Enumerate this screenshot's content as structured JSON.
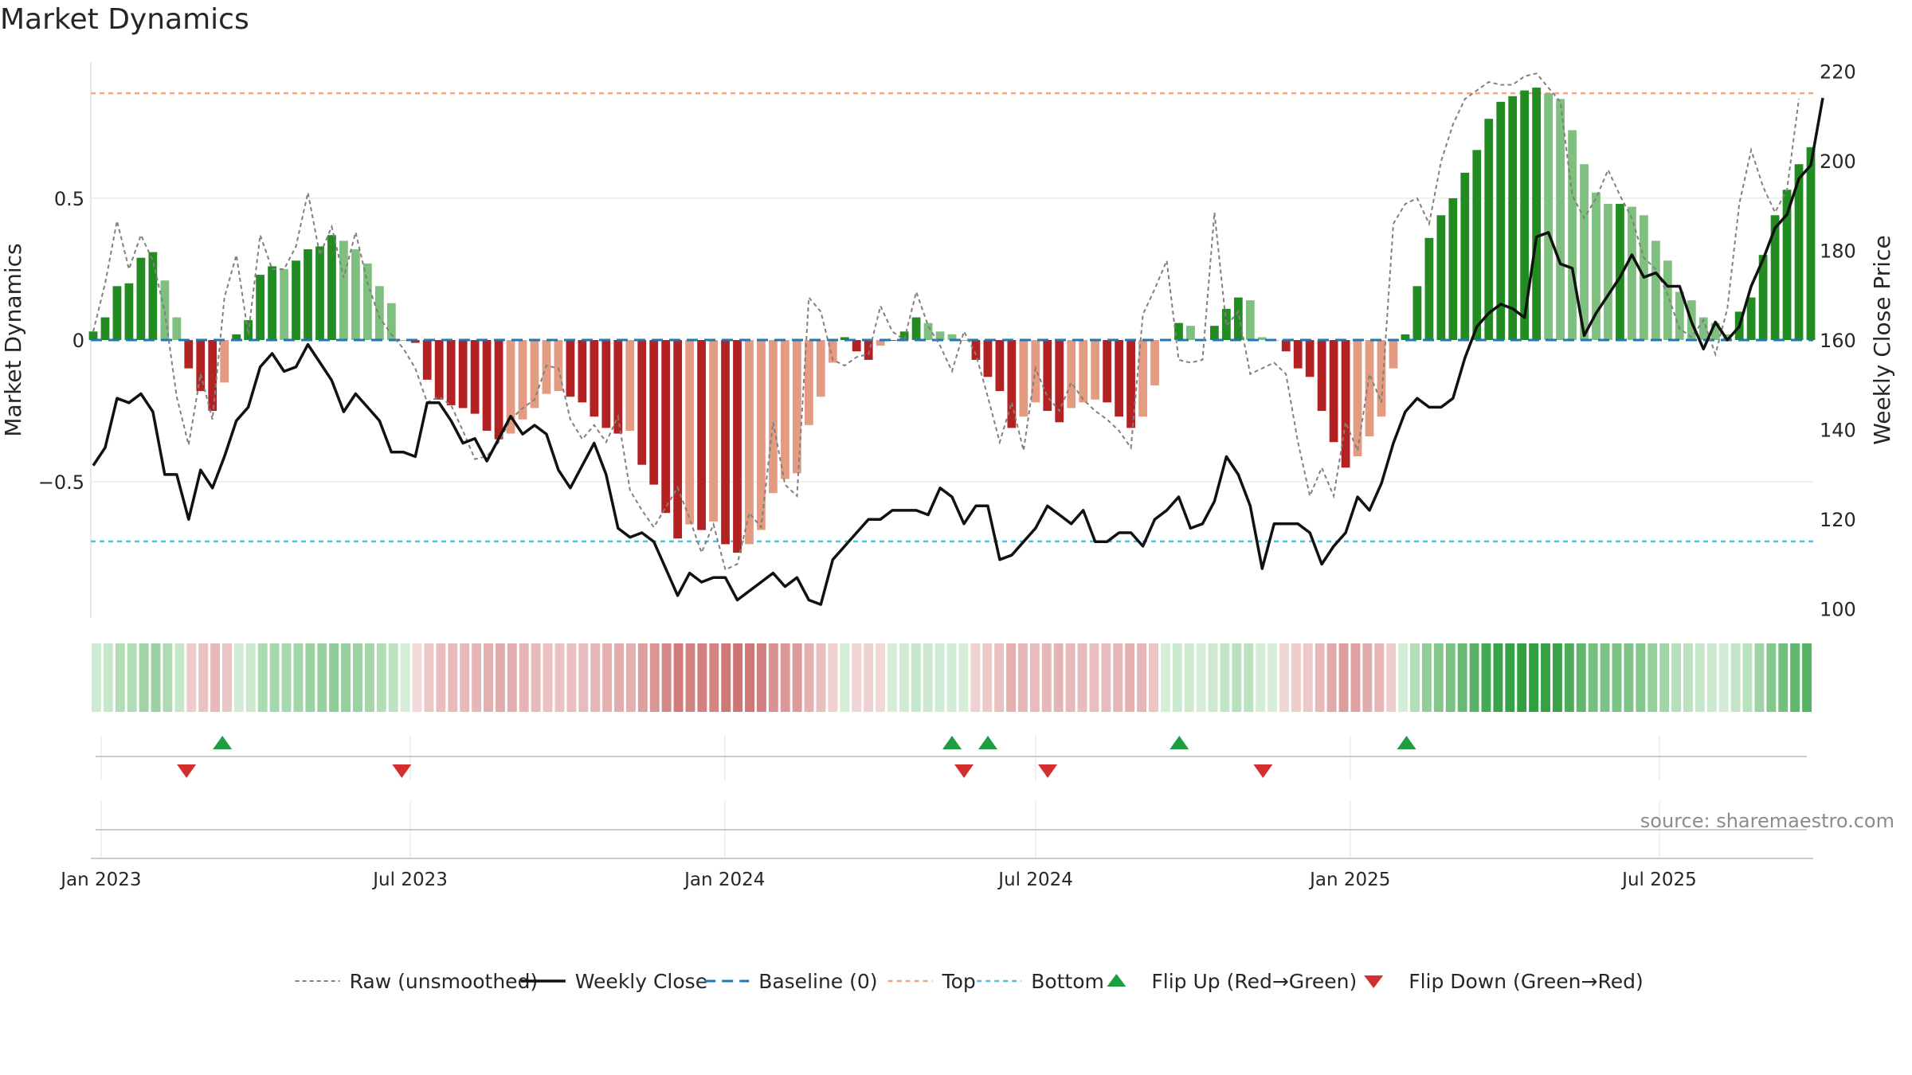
{
  "chart_data": {
    "type": "bar",
    "title": "Market Dynamics",
    "ylabel": "Market Dynamics",
    "y2label": "Weekly Close Price",
    "ylim": [
      -0.98,
      0.98
    ],
    "y2lim": [
      98,
      222
    ],
    "yticks": [
      {
        "v": 0.5,
        "label": "0.5"
      },
      {
        "v": 0,
        "label": "0"
      },
      {
        "v": -0.5,
        "label": "−0.5"
      }
    ],
    "y2ticks": [
      {
        "v": 220,
        "label": "220"
      },
      {
        "v": 200,
        "label": "200"
      },
      {
        "v": 180,
        "label": "180"
      },
      {
        "v": 160,
        "label": "160"
      },
      {
        "v": 140,
        "label": "140"
      },
      {
        "v": 120,
        "label": "120"
      },
      {
        "v": 100,
        "label": "100"
      }
    ],
    "xaxis": {
      "start": "2022-12-26",
      "end": "2025-09-29",
      "ticks": [
        {
          "date": "2023-01-01",
          "label": "Jan 2023"
        },
        {
          "date": "2023-07-01",
          "label": "Jul 2023"
        },
        {
          "date": "2024-01-01",
          "label": "Jan 2024"
        },
        {
          "date": "2024-07-01",
          "label": "Jul 2024"
        },
        {
          "date": "2025-01-01",
          "label": "Jan 2025"
        },
        {
          "date": "2025-07-01",
          "label": "Jul 2025"
        }
      ]
    },
    "top_line": 0.87,
    "bottom_line": -0.71,
    "weekly_close": [
      132,
      136,
      147,
      146,
      148,
      144,
      130,
      130,
      120,
      131,
      127,
      134,
      142,
      145,
      154,
      157,
      153,
      154,
      159,
      155,
      151,
      144,
      148,
      145,
      142,
      135,
      135,
      134,
      146,
      146,
      142,
      137,
      138,
      133,
      138,
      143,
      139,
      141,
      139,
      131,
      127,
      132,
      137,
      130,
      118,
      116,
      117,
      115,
      109,
      103,
      108,
      106,
      107,
      107,
      102,
      104,
      106,
      108,
      105,
      107,
      102,
      101,
      111,
      114,
      117,
      120,
      120,
      122,
      122,
      122,
      121,
      127,
      125,
      119,
      123,
      123,
      111,
      112,
      115,
      118,
      123,
      121,
      119,
      122,
      115,
      115,
      117,
      117,
      114,
      120,
      122,
      125,
      118,
      119,
      124,
      134,
      130,
      123,
      109,
      119,
      119,
      119,
      117,
      110,
      114,
      117,
      125,
      122,
      128,
      137,
      144,
      147,
      145,
      145,
      147,
      156,
      163,
      166,
      168,
      167,
      165,
      183,
      184,
      177,
      176,
      161,
      166,
      170,
      174,
      179,
      174,
      175,
      172,
      172,
      164,
      158,
      164,
      160,
      163,
      172,
      178,
      185,
      188,
      196,
      199,
      214
    ],
    "bars": [
      0.03,
      0.08,
      0.19,
      0.2,
      0.29,
      0.31,
      0.21,
      0.08,
      -0.1,
      -0.18,
      -0.25,
      -0.15,
      0.02,
      0.07,
      0.23,
      0.26,
      0.25,
      0.28,
      0.32,
      0.33,
      0.37,
      0.35,
      0.32,
      0.27,
      0.19,
      0.13,
      0.0,
      -0.01,
      -0.14,
      -0.21,
      -0.23,
      -0.24,
      -0.26,
      -0.32,
      -0.35,
      -0.33,
      -0.28,
      -0.24,
      -0.19,
      -0.18,
      -0.2,
      -0.22,
      -0.27,
      -0.31,
      -0.33,
      -0.32,
      -0.44,
      -0.51,
      -0.61,
      -0.7,
      -0.65,
      -0.67,
      -0.64,
      -0.72,
      -0.75,
      -0.72,
      -0.67,
      -0.54,
      -0.49,
      -0.47,
      -0.3,
      -0.2,
      -0.08,
      0.01,
      -0.04,
      -0.07,
      -0.02,
      0.0,
      0.03,
      0.08,
      0.06,
      0.03,
      0.02,
      0.0,
      -0.07,
      -0.13,
      -0.18,
      -0.31,
      -0.27,
      -0.22,
      -0.25,
      -0.29,
      -0.24,
      -0.22,
      -0.21,
      -0.22,
      -0.27,
      -0.31,
      -0.27,
      -0.16,
      0.0,
      0.06,
      0.05,
      0.0,
      0.05,
      0.11,
      0.15,
      0.14,
      0.01,
      0.0,
      -0.04,
      -0.1,
      -0.13,
      -0.25,
      -0.36,
      -0.45,
      -0.41,
      -0.34,
      -0.27,
      -0.1,
      0.02,
      0.19,
      0.36,
      0.44,
      0.5,
      0.59,
      0.67,
      0.78,
      0.84,
      0.86,
      0.88,
      0.89,
      0.87,
      0.85,
      0.74,
      0.62,
      0.52,
      0.48,
      0.48,
      0.47,
      0.44,
      0.35,
      0.28,
      0.17,
      0.14,
      0.08,
      0.06,
      0.02,
      0.1,
      0.15,
      0.3,
      0.44,
      0.53,
      0.62,
      0.68
    ],
    "raw": [
      0.03,
      0.2,
      0.42,
      0.25,
      0.37,
      0.28,
      0.1,
      -0.2,
      -0.37,
      -0.12,
      -0.28,
      0.15,
      0.3,
      0.02,
      0.37,
      0.25,
      0.25,
      0.33,
      0.52,
      0.3,
      0.4,
      0.22,
      0.38,
      0.2,
      0.08,
      0.02,
      -0.03,
      -0.1,
      -0.22,
      -0.2,
      -0.23,
      -0.32,
      -0.42,
      -0.41,
      -0.36,
      -0.28,
      -0.24,
      -0.21,
      -0.09,
      -0.1,
      -0.28,
      -0.35,
      -0.3,
      -0.36,
      -0.27,
      -0.53,
      -0.6,
      -0.66,
      -0.59,
      -0.52,
      -0.63,
      -0.75,
      -0.65,
      -0.81,
      -0.79,
      -0.61,
      -0.66,
      -0.29,
      -0.51,
      -0.55,
      0.15,
      0.1,
      -0.07,
      -0.09,
      -0.06,
      -0.05,
      0.12,
      0.03,
      0.0,
      0.17,
      0.05,
      -0.02,
      -0.11,
      0.03,
      -0.05,
      -0.2,
      -0.36,
      -0.22,
      -0.39,
      -0.1,
      -0.2,
      -0.25,
      -0.15,
      -0.21,
      -0.25,
      -0.28,
      -0.32,
      -0.38,
      0.09,
      0.18,
      0.28,
      -0.07,
      -0.08,
      -0.07,
      0.45,
      0.05,
      0.1,
      -0.12,
      -0.1,
      -0.08,
      -0.12,
      -0.36,
      -0.55,
      -0.45,
      -0.55,
      -0.29,
      -0.39,
      -0.12,
      -0.22,
      0.41,
      0.48,
      0.5,
      0.41,
      0.63,
      0.76,
      0.85,
      0.88,
      0.91,
      0.9,
      0.9,
      0.93,
      0.94,
      0.89,
      0.84,
      0.51,
      0.43,
      0.5,
      0.6,
      0.51,
      0.43,
      0.29,
      0.25,
      0.16,
      0.04,
      0.01,
      0.07,
      -0.05,
      0.11,
      0.48,
      0.67,
      0.54,
      0.45,
      0.53,
      0.85
    ],
    "flip_up": [
      "2023-03-13",
      "2024-05-13",
      "2024-06-03",
      "2024-09-23",
      "2025-02-03"
    ],
    "flip_down": [
      "2023-02-20",
      "2023-06-26",
      "2024-05-20",
      "2024-07-08",
      "2024-11-11"
    ],
    "colors": {
      "pos_strong": "#228B22",
      "pos_weak": "#7FBF7F",
      "neg_strong": "#B22222",
      "neg_weak": "#E39B82",
      "close": "#111111",
      "raw": "#808080",
      "baseline": "#1F77B4",
      "top": "#F4A582",
      "bottom": "#4FC3D9",
      "flip_up": "#1E9E40",
      "flip_down": "#D32F2F"
    },
    "legend": [
      {
        "key": "raw",
        "label": "Raw (unsmoothed)"
      },
      {
        "key": "close",
        "label": "Weekly Close"
      },
      {
        "key": "baseline",
        "label": "Baseline (0)"
      },
      {
        "key": "top",
        "label": "Top"
      },
      {
        "key": "bottom",
        "label": "Bottom"
      },
      {
        "key": "flip_up",
        "label": "Flip Up (Red→Green)"
      },
      {
        "key": "flip_down",
        "label": "Flip Down (Green→Red)"
      }
    ],
    "legend_position": "bottom",
    "source": "source: sharemaestro.com"
  }
}
